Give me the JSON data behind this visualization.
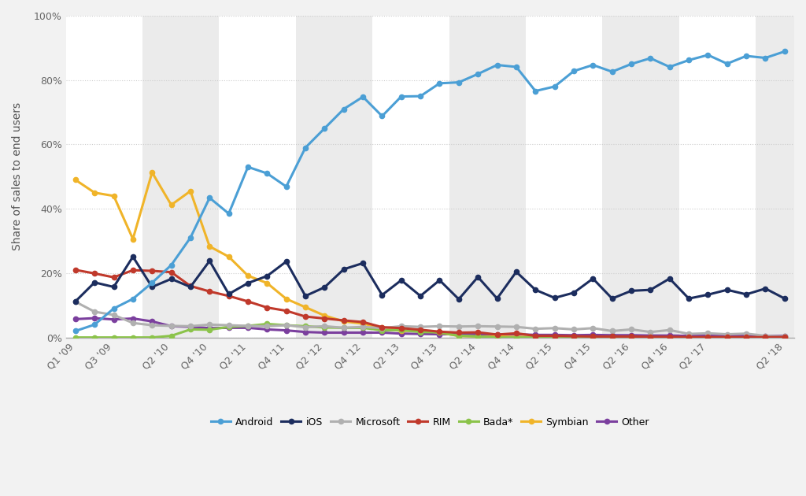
{
  "ylabel": "Share of sales to end users",
  "background_color": "#f2f2f2",
  "plot_bg_colors": [
    "#ffffff",
    "#ebebeb"
  ],
  "grid_color": "#cccccc",
  "ylim": [
    0,
    100
  ],
  "yticks": [
    0,
    20,
    40,
    60,
    80,
    100
  ],
  "ytick_labels": [
    "0%",
    "20%",
    "40%",
    "60%",
    "80%",
    "100%"
  ],
  "x_labels": [
    "Q1 '09",
    "Q3 '09",
    "Q2 '10",
    "Q4 '10",
    "Q2 '11",
    "Q4 '11",
    "Q2 '12",
    "Q4 '12",
    "Q2 '13",
    "Q4 '13",
    "Q2 '14",
    "Q4 '14",
    "Q2 '15",
    "Q4 '15",
    "Q2 '16",
    "Q4 '16",
    "Q2 '17",
    "Q2 '18"
  ],
  "tick_positions": [
    0,
    2,
    5,
    7,
    9,
    11,
    13,
    15,
    17,
    19,
    21,
    23,
    25,
    27,
    29,
    31,
    33,
    37
  ],
  "n_points": 38,
  "series": {
    "Android": {
      "color": "#4b9fd5",
      "linewidth": 2.2,
      "markersize": 4.5,
      "zorder": 10,
      "values": [
        2.0,
        4.0,
        9.0,
        12.0,
        17.0,
        22.5,
        31.0,
        43.4,
        38.5,
        53.0,
        51.0,
        46.9,
        59.0,
        65.0,
        71.0,
        74.8,
        68.8,
        74.9,
        75.0,
        79.0,
        79.3,
        81.9,
        84.7,
        84.1,
        76.6,
        78.0,
        82.8,
        84.7,
        82.6,
        85.0,
        86.8,
        84.1,
        86.2,
        87.8,
        85.1,
        87.5,
        86.9,
        88.9
      ]
    },
    "iOS": {
      "color": "#1c2d5e",
      "linewidth": 2.2,
      "markersize": 4.5,
      "zorder": 9,
      "values": [
        11.2,
        17.1,
        15.7,
        25.1,
        15.7,
        18.2,
        15.7,
        23.8,
        13.5,
        16.9,
        19.1,
        23.6,
        12.9,
        15.6,
        21.2,
        23.1,
        13.2,
        17.8,
        12.9,
        17.8,
        11.9,
        18.8,
        12.1,
        20.4,
        14.8,
        12.3,
        13.9,
        18.3,
        12.1,
        14.5,
        14.8,
        18.3,
        12.1,
        13.3,
        14.8,
        13.4,
        15.2,
        12.1
      ]
    },
    "Microsoft": {
      "color": "#b0b0b0",
      "linewidth": 2.2,
      "markersize": 4.5,
      "zorder": 7,
      "values": [
        11.1,
        8.0,
        7.0,
        4.5,
        3.8,
        3.6,
        3.5,
        4.0,
        3.8,
        3.6,
        3.5,
        3.8,
        3.2,
        3.5,
        3.0,
        3.3,
        2.9,
        3.5,
        3.3,
        3.5,
        3.4,
        3.5,
        3.4,
        3.3,
        2.7,
        2.9,
        2.5,
        2.9,
        2.0,
        2.5,
        1.7,
        2.3,
        1.1,
        1.3,
        1.0,
        1.2,
        0.5,
        0.3
      ]
    },
    "RIM": {
      "color": "#c0392b",
      "linewidth": 2.2,
      "markersize": 4.5,
      "zorder": 8,
      "values": [
        21.0,
        19.9,
        18.7,
        20.9,
        20.7,
        20.3,
        16.0,
        14.3,
        12.9,
        11.2,
        9.3,
        8.3,
        6.5,
        5.9,
        5.3,
        4.8,
        3.2,
        2.9,
        2.4,
        1.8,
        1.5,
        1.6,
        0.9,
        1.3,
        0.5,
        0.5,
        0.4,
        0.3,
        0.3,
        0.3,
        0.2,
        0.2,
        0.1,
        0.1,
        0.1,
        0.1,
        0.1,
        0.1
      ]
    },
    "Bada*": {
      "color": "#8bc34a",
      "linewidth": 2.2,
      "markersize": 4.5,
      "zorder": 6,
      "values": [
        0.0,
        0.0,
        0.0,
        0.0,
        0.0,
        0.5,
        2.5,
        2.4,
        3.3,
        3.6,
        4.2,
        3.8,
        3.5,
        3.1,
        3.0,
        3.0,
        2.2,
        2.3,
        1.7,
        1.6,
        0.5,
        0.3,
        0.0,
        0.0,
        0.0,
        0.0,
        0.0,
        0.0,
        0.0,
        0.0,
        0.0,
        0.0,
        0.0,
        0.0,
        0.0,
        0.0,
        0.0,
        0.0
      ]
    },
    "Symbian": {
      "color": "#f0b429",
      "linewidth": 2.2,
      "markersize": 4.5,
      "zorder": 5,
      "values": [
        49.0,
        45.0,
        44.0,
        30.6,
        51.3,
        41.2,
        45.5,
        28.3,
        25.1,
        19.2,
        16.9,
        12.0,
        9.4,
        6.8,
        5.0,
        4.3,
        3.0,
        2.0,
        2.2,
        1.5,
        0.5,
        0.3,
        0.3,
        0.2,
        0.1,
        0.1,
        0.0,
        0.0,
        0.0,
        0.0,
        0.0,
        0.0,
        0.0,
        0.0,
        0.0,
        0.0,
        0.0,
        0.0
      ]
    },
    "Other": {
      "color": "#7b3f9e",
      "linewidth": 2.2,
      "markersize": 4.5,
      "zorder": 4,
      "values": [
        5.7,
        6.0,
        5.6,
        5.9,
        5.0,
        3.5,
        3.3,
        2.9,
        3.0,
        3.0,
        2.5,
        2.2,
        1.7,
        1.5,
        1.5,
        1.5,
        1.5,
        1.2,
        1.1,
        1.0,
        1.0,
        1.0,
        0.9,
        1.0,
        0.8,
        0.8,
        0.7,
        0.8,
        0.7,
        0.7,
        0.6,
        0.6,
        0.5,
        0.5,
        0.5,
        0.5,
        0.5,
        0.5
      ]
    }
  }
}
